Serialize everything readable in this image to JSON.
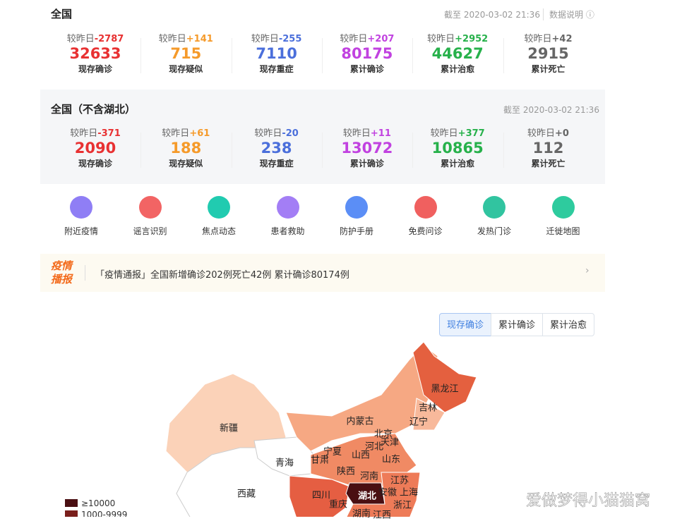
{
  "overall": {
    "title": "全国",
    "updated": "截至 2020-03-02 21:36",
    "help": "数据说明",
    "stats": [
      {
        "prefix": "较昨日",
        "delta": "-2787",
        "value": "32633",
        "label": "现存确诊"
      },
      {
        "prefix": "较昨日",
        "delta": "+141",
        "value": "715",
        "label": "现存疑似"
      },
      {
        "prefix": "较昨日",
        "delta": "-255",
        "value": "7110",
        "label": "现存重症"
      },
      {
        "prefix": "较昨日",
        "delta": "+207",
        "value": "80175",
        "label": "累计确诊"
      },
      {
        "prefix": "较昨日",
        "delta": "+2952",
        "value": "44627",
        "label": "累计治愈"
      },
      {
        "prefix": "较昨日",
        "delta": "+42",
        "value": "2915",
        "label": "累计死亡"
      }
    ]
  },
  "excl_hubei": {
    "title": "全国（不含湖北）",
    "updated": "截至 2020-03-02 21:36",
    "stats": [
      {
        "prefix": "较昨日",
        "delta": "-371",
        "value": "2090",
        "label": "现存确诊"
      },
      {
        "prefix": "较昨日",
        "delta": "+61",
        "value": "188",
        "label": "现存疑似"
      },
      {
        "prefix": "较昨日",
        "delta": "-20",
        "value": "238",
        "label": "现存重症"
      },
      {
        "prefix": "较昨日",
        "delta": "+11",
        "value": "13072",
        "label": "累计确诊"
      },
      {
        "prefix": "较昨日",
        "delta": "+377",
        "value": "10865",
        "label": "累计治愈"
      },
      {
        "prefix": "较昨日",
        "delta": "+0",
        "value": "112",
        "label": "累计死亡"
      }
    ]
  },
  "nav": [
    "附近疫情",
    "谣言识别",
    "焦点动态",
    "患者救助",
    "防护手册",
    "免费问诊",
    "发热门诊",
    "迁徙地图"
  ],
  "news": {
    "badge": [
      "疫情",
      "播报"
    ],
    "text": "「疫情通报」全国新增确诊202例死亡42例 累计确诊80174例"
  },
  "map": {
    "tabs": [
      "现存确诊",
      "累计确诊",
      "累计治愈"
    ],
    "regions": [
      "黑龙江",
      "吉林",
      "辽宁",
      "内蒙古",
      "北京",
      "天津",
      "河北",
      "新疆",
      "青海",
      "甘肃",
      "宁夏",
      "山西",
      "山东",
      "陕西",
      "河南",
      "江苏",
      "西藏",
      "四川",
      "湖北",
      "安徽",
      "上海",
      "重庆",
      "浙江",
      "湖南",
      "江西"
    ],
    "legend": [
      "≥10000",
      "1000-9999"
    ]
  },
  "watermark": "爱做梦得小猫猫窝"
}
